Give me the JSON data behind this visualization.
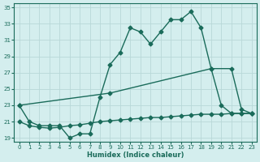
{
  "line1_x": [
    0,
    1,
    2,
    3,
    4,
    5,
    6,
    7,
    8,
    9,
    10,
    11,
    12,
    13,
    14,
    15,
    16,
    17,
    18,
    19,
    20,
    21,
    22,
    23
  ],
  "line1_y": [
    23,
    21,
    20.5,
    20.5,
    20.5,
    19.0,
    19.5,
    19.5,
    24.0,
    28.0,
    29.5,
    32.5,
    32.0,
    30.5,
    32.0,
    33.5,
    33.5,
    34.5,
    32.5,
    27.5,
    23.0,
    22.0,
    22.0,
    22.0
  ],
  "line2_x": [
    0,
    9,
    19,
    21,
    22,
    23
  ],
  "line2_y": [
    23,
    24.5,
    27.5,
    27.5,
    22.5,
    22.0
  ],
  "line3_x": [
    0,
    1,
    2,
    3,
    4,
    5,
    6,
    7,
    8,
    9,
    10,
    11,
    12,
    13,
    14,
    15,
    16,
    17,
    18,
    19,
    20,
    21,
    22,
    23
  ],
  "line3_y": [
    21,
    20.5,
    20.3,
    20.2,
    20.3,
    20.5,
    20.6,
    20.8,
    21.0,
    21.1,
    21.2,
    21.3,
    21.4,
    21.5,
    21.5,
    21.6,
    21.7,
    21.8,
    21.9,
    21.9,
    21.9,
    22.0,
    22.0,
    22.0
  ],
  "color": "#1a6b5a",
  "bg_color": "#d4eeee",
  "grid_color": "#b8d8d8",
  "xlim": [
    -0.5,
    23.5
  ],
  "ylim": [
    18.5,
    35.5
  ],
  "yticks": [
    19,
    21,
    23,
    25,
    27,
    29,
    31,
    33,
    35
  ],
  "xticks": [
    0,
    1,
    2,
    3,
    4,
    5,
    6,
    7,
    8,
    9,
    10,
    11,
    12,
    13,
    14,
    15,
    16,
    17,
    18,
    19,
    20,
    21,
    22,
    23
  ],
  "xlabel": "Humidex (Indice chaleur)",
  "marker": "D",
  "markersize": 2.5,
  "linewidth": 1.0
}
